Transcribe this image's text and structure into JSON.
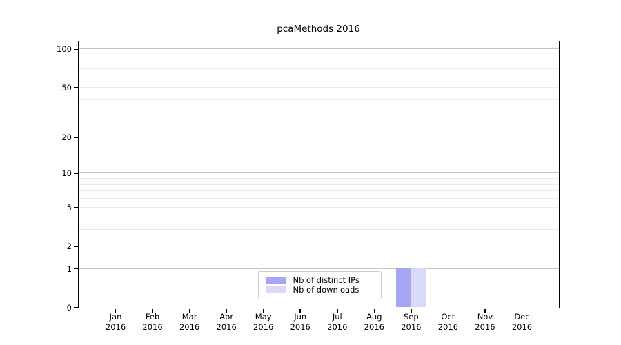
{
  "title": "pcaMethods 2016",
  "chart_data": {
    "type": "bar",
    "title": "pcaMethods 2016",
    "xlabel": "",
    "ylabel": "",
    "year": "2016",
    "months": [
      "Jan",
      "Feb",
      "Mar",
      "Apr",
      "May",
      "Jun",
      "Jul",
      "Aug",
      "Sep",
      "Oct",
      "Nov",
      "Dec"
    ],
    "categories": [
      "Jan 2016",
      "Feb 2016",
      "Mar 2016",
      "Apr 2016",
      "May 2016",
      "Jun 2016",
      "Jul 2016",
      "Aug 2016",
      "Sep 2016",
      "Oct 2016",
      "Nov 2016",
      "Dec 2016"
    ],
    "series": [
      {
        "name": "Nb of distinct IPs",
        "color": "#a6a6f2",
        "values": [
          0,
          0,
          0,
          0,
          0,
          0,
          0,
          0,
          1,
          0,
          0,
          0
        ]
      },
      {
        "name": "Nb of downloads",
        "color": "#d9d9f8",
        "values": [
          0,
          0,
          0,
          0,
          0,
          0,
          0,
          0,
          1,
          0,
          0,
          0
        ]
      }
    ],
    "y_scale": "log1p",
    "ylim": [
      0,
      115
    ],
    "y_tick_labels": [
      "100",
      "50",
      "20",
      "10",
      "5",
      "2",
      "1",
      "0"
    ],
    "y_tick_values": [
      100,
      50,
      20,
      10,
      5,
      2,
      1,
      0
    ],
    "y_major_gridlines": [
      1,
      10,
      100
    ],
    "y_minor_gridlines": [
      2,
      3,
      4,
      5,
      6,
      7,
      8,
      9,
      20,
      30,
      40,
      50,
      60,
      70,
      80,
      90
    ],
    "grid": "horizontal",
    "legend_position": "bottom-center",
    "colors": {
      "major_grid": "#c6c6c6",
      "minor_grid": "#eaeaea",
      "spine": "#000000",
      "legend_border": "#cccccc",
      "background": "#ffffff"
    }
  }
}
